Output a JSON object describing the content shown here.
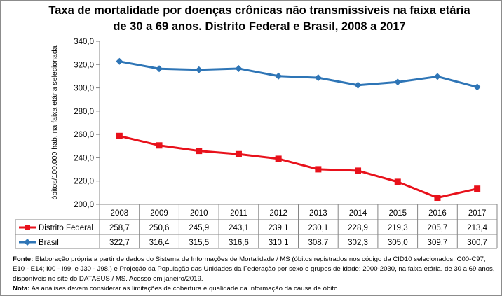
{
  "chart_data": {
    "type": "line",
    "title": "Taxa de mortalidade por doenças crônicas não transmissíveis na faixa etária de 30 a 69 anos. Distrito Federal e Brasil, 2008 a 2017",
    "ylabel": "óbitos/100.000 hab. na faixa etária selecionada",
    "xlabel": "",
    "ylim": [
      200,
      340
    ],
    "yticks": [
      "200,0",
      "220,0",
      "240,0",
      "260,0",
      "280,0",
      "300,0",
      "320,0",
      "340,0"
    ],
    "categories": [
      "2008",
      "2009",
      "2010",
      "2011",
      "2012",
      "2013",
      "2014",
      "2015",
      "2016",
      "2017"
    ],
    "grid": false,
    "legend": "data-table",
    "series": [
      {
        "name": "Distrito Federal",
        "color": "#e8111b",
        "marker": "square",
        "values": [
          258.7,
          250.6,
          245.9,
          243.1,
          239.1,
          230.1,
          228.9,
          219.3,
          205.7,
          213.4
        ],
        "labels": [
          "258,7",
          "250,6",
          "245,9",
          "243,1",
          "239,1",
          "230,1",
          "228,9",
          "219,3",
          "205,7",
          "213,4"
        ]
      },
      {
        "name": "Brasil",
        "color": "#2e75b6",
        "marker": "diamond",
        "values": [
          322.7,
          316.4,
          315.5,
          316.6,
          310.1,
          308.7,
          302.3,
          305.0,
          309.7,
          300.7
        ],
        "labels": [
          "322,7",
          "316,4",
          "315,5",
          "316,6",
          "310,1",
          "308,7",
          "302,3",
          "305,0",
          "309,7",
          "300,7"
        ]
      }
    ]
  },
  "notes": {
    "fonte_label": "Fonte:",
    "fonte_text": " Elaboração própria a partir de dados do Sistema de Informações de Mortalidade / MS (óbitos registrados nos código da CID10 selecionados: C00-C97; E10 - E14; I00 - I99, e J30 - J98.) e Projeção da População das Unidades da Federação por sexo e grupos de idade: 2000-2030, na faixa etária. de 30 a 69 anos, disponíveis no site do DATASUS / MS.  Acesso em janeiro/2019.",
    "nota_label": "Nota:",
    "nota_text": "  As análises devem considerar as limitações de cobertura e qualidade da informação da causa de óbito"
  }
}
